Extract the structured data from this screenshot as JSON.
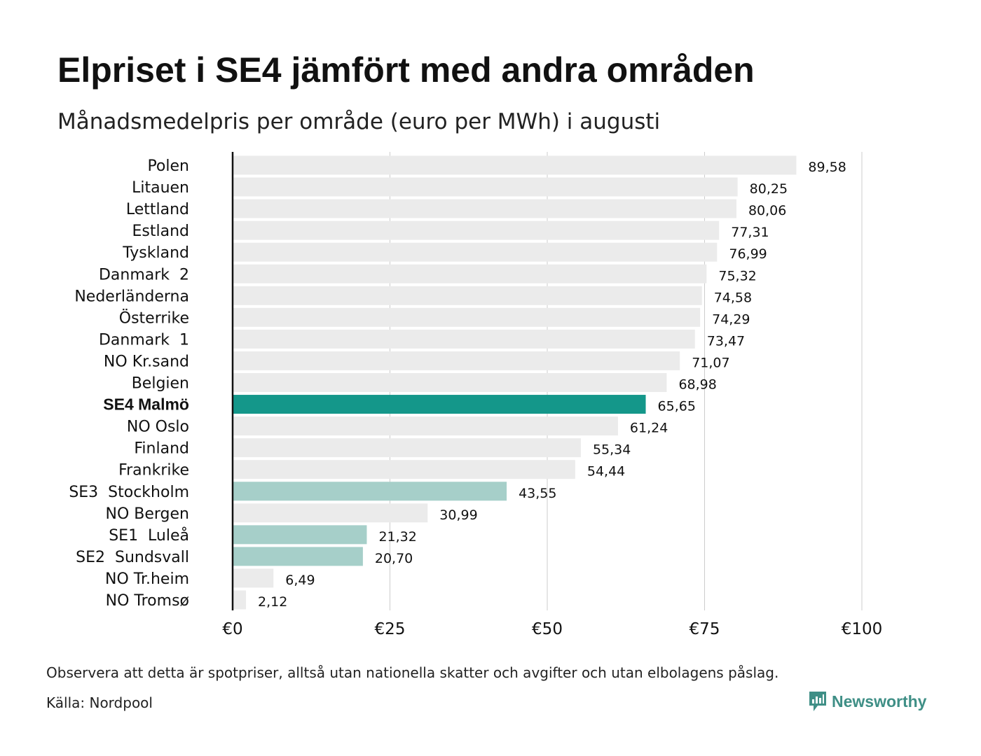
{
  "header": {
    "title": "Elpriset i SE4 jämfört med andra områden",
    "subtitle": "Månadsmedelpris per område (euro per MWh) i augusti"
  },
  "footer": {
    "note": "Observera att detta är spotpriser, alltså utan nationella skatter och avgifter och utan elbolagens påslag.",
    "source": "Källa: Nordpool",
    "brand": "Newsworthy",
    "brand_icon": "newsworthy-logo-icon"
  },
  "colors": {
    "default_bar": "#ebebeb",
    "highlight_bar": "#14978a",
    "swedish_bar": "#a6cfc9",
    "grid": "#cccccc",
    "axis": "#111111",
    "brand": "#3f8f86"
  },
  "chart_data": {
    "type": "bar",
    "orientation": "horizontal",
    "title": "Elpriset i SE4 jämfört med andra områden",
    "subtitle": "Månadsmedelpris per område (euro per MWh) i augusti",
    "xlim": [
      0,
      100
    ],
    "ticks": [
      0,
      25,
      50,
      75,
      100
    ],
    "tick_labels": [
      "€0",
      "€25",
      "€50",
      "€75",
      "€100"
    ],
    "grid": true,
    "categories": [
      "Polen",
      "Litauen",
      "Lettland",
      "Estland",
      "Tyskland",
      "Danmark  2",
      "Nederländerna",
      "Österrike",
      "Danmark  1",
      "NO Kr.sand",
      "Belgien",
      "SE4 Malmö",
      "NO Oslo",
      "Finland",
      "Frankrike",
      "SE3  Stockholm",
      "NO Bergen",
      "SE1  Luleå",
      "SE2  Sundsvall",
      "NO Tr.heim",
      "NO Tromsø"
    ],
    "values": [
      89.58,
      80.25,
      80.06,
      77.31,
      76.99,
      75.32,
      74.58,
      74.29,
      73.47,
      71.07,
      68.98,
      65.65,
      61.24,
      55.34,
      54.44,
      43.55,
      30.99,
      21.32,
      20.7,
      6.49,
      2.12
    ],
    "value_labels": [
      "89,58",
      "80,25",
      "80,06",
      "77,31",
      "76,99",
      "75,32",
      "74,58",
      "74,29",
      "73,47",
      "71,07",
      "68,98",
      "65,65",
      "61,24",
      "55,34",
      "54,44",
      "43,55",
      "30,99",
      "21,32",
      "20,70",
      "6,49",
      "2,12"
    ],
    "bar_style": [
      "default",
      "default",
      "default",
      "default",
      "default",
      "default",
      "default",
      "default",
      "default",
      "default",
      "default",
      "highlight",
      "default",
      "default",
      "default",
      "swedish",
      "default",
      "swedish",
      "swedish",
      "default",
      "default"
    ],
    "bold_category": "SE4 Malmö"
  }
}
